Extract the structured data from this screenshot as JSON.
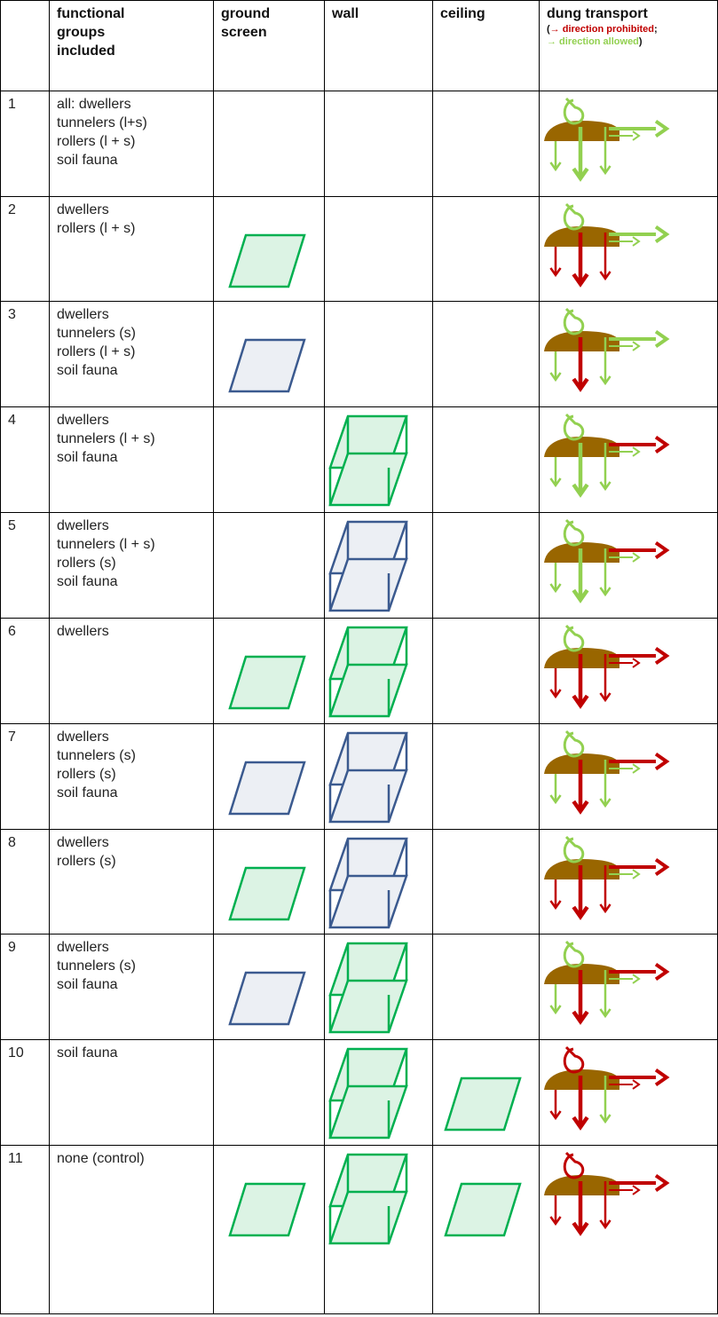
{
  "header": {
    "groups": [
      "functional",
      "groups",
      "included"
    ],
    "ground": [
      "ground",
      "screen"
    ],
    "wall": "wall",
    "ceiling": "ceiling",
    "transport": "dung transport",
    "legend": {
      "open": "(",
      "prohibited": "→ direction prohibited",
      "sep": ";",
      "allowed": "→ direction allowed",
      "close": ")",
      "prohibited_color": "#c00000",
      "allowed_color": "#92d050"
    }
  },
  "screen_colors": {
    "fine": "#00b050",
    "coarse": "#3b5a8f"
  },
  "rows": [
    {
      "number": 1,
      "groups": [
        "all: dwellers",
        "tunnelers (l+s)",
        "rollers (l + s)",
        "soil fauna"
      ],
      "ground": null,
      "wall": null,
      "ceiling": null,
      "transport": {
        "loop": "#92d050",
        "right": "#92d050",
        "inner": "#92d050",
        "down": [
          "#92d050",
          "#92d050",
          "#92d050"
        ]
      }
    },
    {
      "number": 2,
      "groups": [
        "dwellers",
        "rollers (l + s)"
      ],
      "ground": "#00b050",
      "wall": null,
      "ceiling": null,
      "transport": {
        "loop": "#92d050",
        "right": "#92d050",
        "inner": "#92d050",
        "down": [
          "#c00000",
          "#c00000",
          "#c00000"
        ]
      }
    },
    {
      "number": 3,
      "groups": [
        "dwellers",
        "tunnelers (s)",
        "rollers (l + s)",
        "soil fauna"
      ],
      "ground": "#3b5a8f",
      "wall": null,
      "ceiling": null,
      "transport": {
        "loop": "#92d050",
        "right": "#92d050",
        "inner": "#92d050",
        "down": [
          "#92d050",
          "#c00000",
          "#92d050"
        ]
      }
    },
    {
      "number": 4,
      "groups": [
        "dwellers",
        "tunnelers (l + s)",
        "soil fauna"
      ],
      "ground": null,
      "wall": "#00b050",
      "ceiling": null,
      "transport": {
        "loop": "#92d050",
        "right": "#c00000",
        "inner": "#92d050",
        "down": [
          "#92d050",
          "#92d050",
          "#92d050"
        ]
      }
    },
    {
      "number": 5,
      "groups": [
        "dwellers",
        "tunnelers (l + s)",
        "rollers (s)",
        "soil fauna"
      ],
      "ground": null,
      "wall": "#3b5a8f",
      "ceiling": null,
      "transport": {
        "loop": "#92d050",
        "right": "#c00000",
        "inner": "#92d050",
        "down": [
          "#92d050",
          "#92d050",
          "#92d050"
        ]
      }
    },
    {
      "number": 6,
      "groups": [
        "dwellers"
      ],
      "ground": "#00b050",
      "wall": "#00b050",
      "ceiling": null,
      "transport": {
        "loop": "#92d050",
        "right": "#c00000",
        "inner": "#c00000",
        "down": [
          "#c00000",
          "#c00000",
          "#c00000"
        ]
      }
    },
    {
      "number": 7,
      "groups": [
        "dwellers",
        "tunnelers (s)",
        "rollers (s)",
        "soil fauna"
      ],
      "ground": "#3b5a8f",
      "wall": "#3b5a8f",
      "ceiling": null,
      "transport": {
        "loop": "#92d050",
        "right": "#c00000",
        "inner": "#92d050",
        "down": [
          "#92d050",
          "#c00000",
          "#92d050"
        ]
      }
    },
    {
      "number": 8,
      "groups": [
        "dwellers",
        "rollers (s)"
      ],
      "ground": "#00b050",
      "wall": "#3b5a8f",
      "ceiling": null,
      "transport": {
        "loop": "#92d050",
        "right": "#c00000",
        "inner": "#92d050",
        "down": [
          "#c00000",
          "#c00000",
          "#c00000"
        ]
      }
    },
    {
      "number": 9,
      "groups": [
        "dwellers",
        "tunnelers (s)",
        "soil fauna"
      ],
      "ground": "#3b5a8f",
      "wall": "#00b050",
      "ceiling": null,
      "transport": {
        "loop": "#92d050",
        "right": "#c00000",
        "inner": "#92d050",
        "down": [
          "#92d050",
          "#c00000",
          "#92d050"
        ]
      }
    },
    {
      "number": 10,
      "groups": [
        "soil fauna"
      ],
      "ground": null,
      "wall": "#00b050",
      "ceiling": "#00b050",
      "transport": {
        "loop": "#c00000",
        "right": "#c00000",
        "inner": "#c00000",
        "down": [
          "#c00000",
          "#c00000",
          "#92d050"
        ]
      }
    },
    {
      "number": 11,
      "groups": [
        "none (control)"
      ],
      "ground": "#00b050",
      "wall": "#00b050",
      "ceiling": "#00b050",
      "transport": {
        "loop": "#c00000",
        "right": "#c00000",
        "inner": "#c00000",
        "down": [
          "#c00000",
          "#c00000",
          "#c00000"
        ]
      }
    }
  ]
}
